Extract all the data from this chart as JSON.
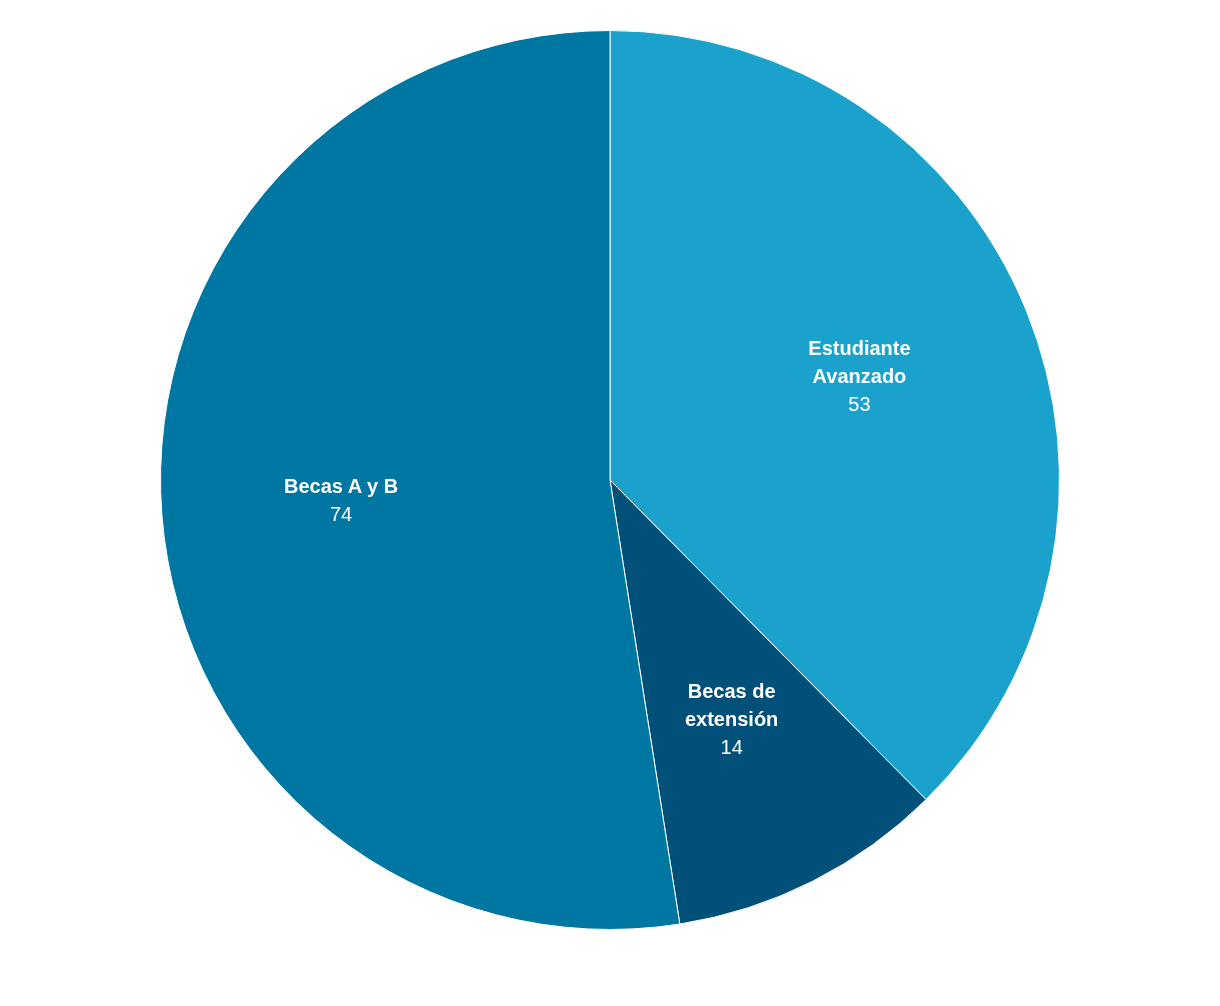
{
  "chart_data": {
    "type": "pie",
    "categories": [
      "Estudiante Avanzado",
      "Becas de extensión",
      "Becas A y B"
    ],
    "values": [
      53,
      14,
      74
    ],
    "colors": [
      "#1aa1cc",
      "#00507a",
      "#0077a2"
    ],
    "data_labels": true,
    "legend": false
  }
}
